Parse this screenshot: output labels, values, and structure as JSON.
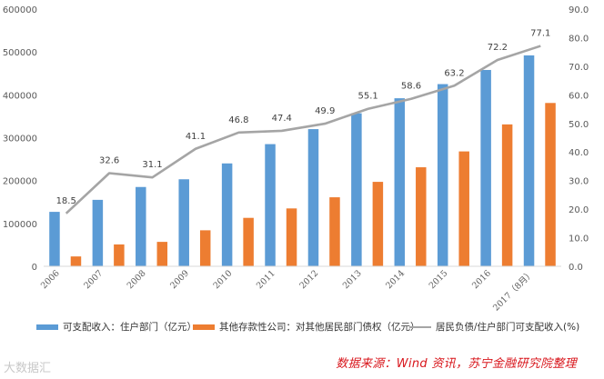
{
  "chart_data": {
    "type": "bar+line",
    "categories": [
      "2006",
      "2007",
      "2008",
      "2009",
      "2010",
      "2011",
      "2012",
      "2013",
      "2014",
      "2015",
      "2016",
      "2017（8月）"
    ],
    "series": [
      {
        "name": "可支配收入：住户部门（亿元）",
        "type": "bar",
        "axis": "left",
        "color": "#5b9bd5",
        "values": [
          127000,
          155000,
          185000,
          203000,
          240000,
          285000,
          320000,
          357000,
          392000,
          425000,
          458000,
          492000
        ]
      },
      {
        "name": "其他存款性公司：对其他居民部门债权（亿元）",
        "type": "bar",
        "axis": "left",
        "color": "#ed7d31",
        "values": [
          23000,
          51000,
          57000,
          84000,
          113000,
          135000,
          161000,
          197000,
          231000,
          268000,
          331000,
          381000
        ]
      },
      {
        "name": "居民负债/住户部门可支配收入(%)",
        "type": "line",
        "axis": "right",
        "color": "#a5a5a5",
        "values": [
          18.5,
          32.6,
          31.1,
          41.1,
          46.8,
          47.4,
          49.9,
          55.1,
          58.6,
          63.2,
          72.2,
          77.1
        ]
      }
    ],
    "y_left": {
      "min": 0,
      "max": 600000,
      "ticks": [
        "0",
        "100000",
        "200000",
        "300000",
        "400000",
        "500000",
        "600000"
      ]
    },
    "y_right": {
      "min": 0,
      "max": 90,
      "ticks": [
        "0.0",
        "10.0",
        "20.0",
        "30.0",
        "40.0",
        "50.0",
        "60.0",
        "70.0",
        "80.0",
        "90.0"
      ]
    },
    "data_labels": [
      "18.5",
      "32.6",
      "31.1",
      "41.1",
      "46.8",
      "47.4",
      "49.9",
      "55.1",
      "58.6",
      "63.2",
      "72.2",
      "77.1"
    ],
    "grid": false,
    "legend_position": "bottom"
  },
  "legend": {
    "item1": "可支配收入：住户部门（亿元）",
    "item2": "其他存款性公司：对其他居民部门债权（亿元）",
    "item3": "居民负债/住户部门可支配收入(%)"
  },
  "source_note": "数据来源：Wind 资讯，苏宁金融研究院整理",
  "watermark": "大数据汇",
  "colors": {
    "blue": "#5b9bd5",
    "orange": "#ed7d31",
    "gray": "#a5a5a5",
    "source_red": "#d8151b"
  }
}
